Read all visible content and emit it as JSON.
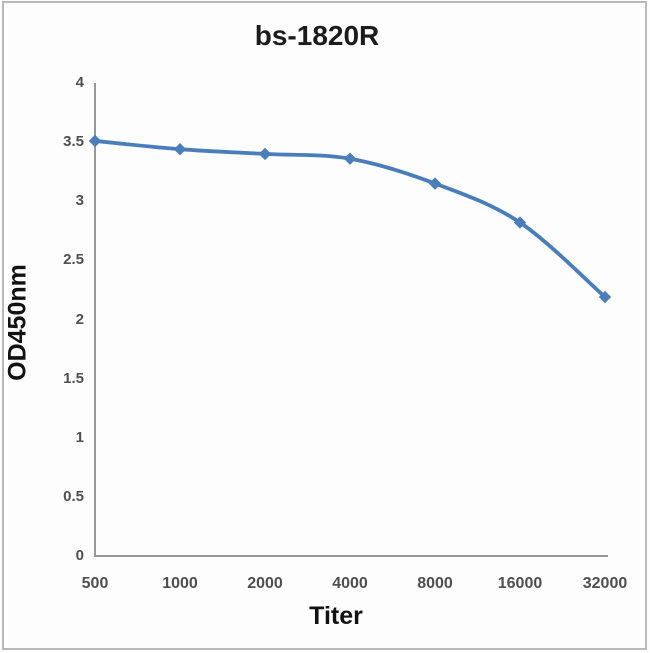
{
  "frame": {
    "border_color": "#b9b9b9",
    "background": "#fdfdfd"
  },
  "chart_data": {
    "type": "line",
    "title": "bs-1820R",
    "xlabel": "Titer",
    "ylabel": "OD450nm",
    "categories": [
      "500",
      "1000",
      "2000",
      "4000",
      "8000",
      "16000",
      "32000"
    ],
    "values": [
      3.51,
      3.44,
      3.4,
      3.36,
      3.15,
      2.82,
      2.19
    ],
    "y_ticks": [
      "0",
      "0.5",
      "1",
      "1.5",
      "2",
      "2.5",
      "3",
      "3.5",
      "4"
    ],
    "ylim": [
      0,
      4
    ],
    "series_name": "OD450nm vs Titer",
    "series_color": "#4a7ebb",
    "marker": "diamond",
    "smooth": true,
    "grid": false,
    "legend": "none",
    "axis_color": "#979797"
  }
}
